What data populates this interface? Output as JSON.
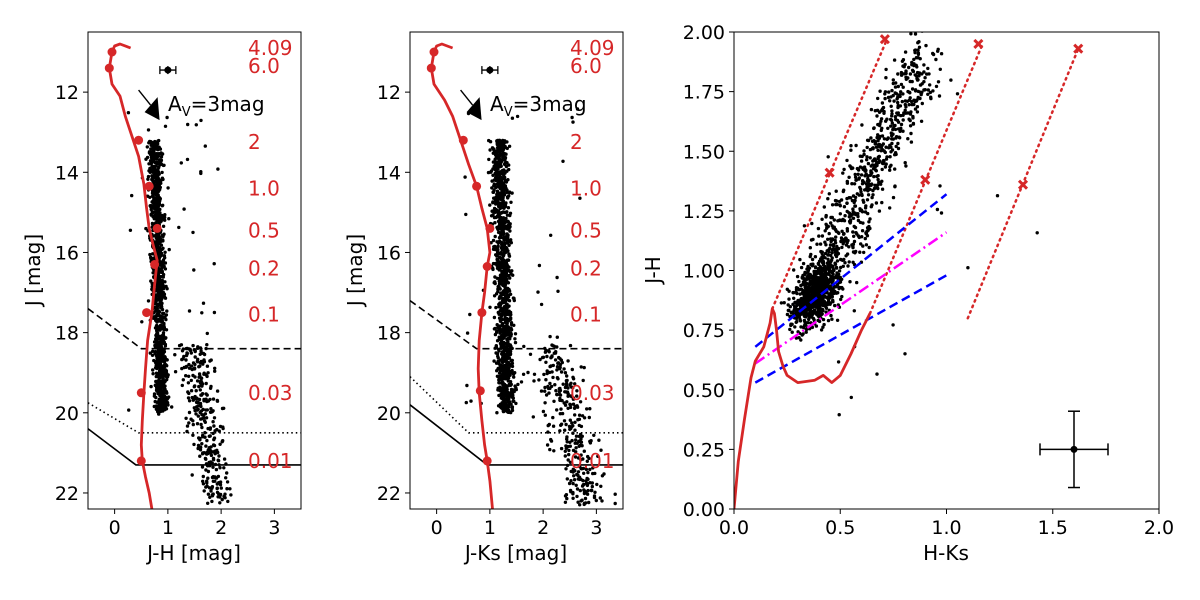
{
  "chart_data": [
    {
      "type": "scatter",
      "xlabel": "J-H [mag]",
      "ylabel": "J [mag]",
      "xlim": [
        -0.5,
        3.5
      ],
      "ylim": [
        22.4,
        10.5
      ],
      "xticks": [
        "0",
        "1",
        "2",
        "3"
      ],
      "yticks": [
        "12",
        "14",
        "16",
        "18",
        "20",
        "22"
      ],
      "grid": false,
      "isochrone": {
        "x": [
          0.3,
          0.1,
          0.0,
          -0.05,
          -0.1,
          -0.05,
          0.1,
          0.2,
          0.3,
          0.45,
          0.55,
          0.6,
          0.65,
          0.72,
          0.8,
          0.75,
          0.7,
          0.62,
          0.58,
          0.55,
          0.52,
          0.5,
          0.52,
          0.58,
          0.65,
          0.7
        ],
        "y": [
          10.9,
          10.8,
          10.85,
          11.0,
          11.4,
          11.8,
          12.1,
          12.6,
          13.0,
          13.6,
          14.3,
          14.9,
          15.4,
          15.8,
          16.2,
          16.8,
          17.5,
          18.2,
          18.9,
          19.5,
          20.2,
          20.8,
          21.2,
          21.6,
          22.0,
          22.4
        ]
      },
      "mass_points": {
        "x": [
          -0.1,
          -0.05,
          0.45,
          0.65,
          0.8,
          0.75,
          0.6,
          0.5,
          0.5
        ],
        "y": [
          11.4,
          11.0,
          13.2,
          14.35,
          15.4,
          16.3,
          17.5,
          19.5,
          21.2
        ]
      },
      "mass_labels": [
        "4.09",
        "6.0",
        "2",
        "1.0",
        "0.5",
        "0.2",
        "0.1",
        "0.03",
        "0.01"
      ],
      "mass_label_mags": [
        10.9,
        11.35,
        13.25,
        14.4,
        15.45,
        16.4,
        17.55,
        19.5,
        21.2
      ],
      "av_label": "A",
      "av_sub": "V",
      "av_rest": "=3mag",
      "error_bar": {
        "x": 1.0,
        "y": 11.45,
        "xerr": 0.15,
        "yerr": 0.1
      },
      "limit_lines": [
        {
          "style": "dashed",
          "x": [
            -0.5,
            0.5,
            3.5
          ],
          "y": [
            17.4,
            18.4,
            18.4
          ]
        },
        {
          "style": "dotted",
          "x": [
            -0.5,
            0.45,
            3.5
          ],
          "y": [
            19.75,
            20.5,
            20.5
          ]
        },
        {
          "style": "solid",
          "x": [
            -0.5,
            0.4,
            3.5
          ],
          "y": [
            20.4,
            21.3,
            21.3
          ]
        }
      ]
    },
    {
      "type": "scatter",
      "xlabel": "J-Ks [mag]",
      "ylabel": "J [mag]",
      "xlim": [
        -0.5,
        3.5
      ],
      "ylim": [
        22.4,
        10.5
      ],
      "xticks": [
        "0",
        "1",
        "2",
        "3"
      ],
      "yticks": [
        "12",
        "14",
        "16",
        "18",
        "20",
        "22"
      ],
      "grid": false,
      "isochrone": {
        "x": [
          0.3,
          0.1,
          0.0,
          -0.05,
          -0.1,
          -0.05,
          0.15,
          0.3,
          0.45,
          0.6,
          0.75,
          0.85,
          0.95,
          1.0,
          0.95,
          0.9,
          0.85,
          0.8,
          0.78,
          0.8,
          0.85,
          0.9,
          0.95,
          1.0,
          1.05
        ],
        "y": [
          10.9,
          10.8,
          10.85,
          11.0,
          11.4,
          11.8,
          12.2,
          12.6,
          13.2,
          13.8,
          14.35,
          14.9,
          15.4,
          16.0,
          16.35,
          17.0,
          17.5,
          18.2,
          18.9,
          19.5,
          20.2,
          20.8,
          21.2,
          21.7,
          22.4
        ]
      },
      "mass_points": {
        "x": [
          -0.1,
          -0.05,
          0.5,
          0.75,
          1.0,
          0.95,
          0.85,
          0.82,
          0.95
        ],
        "y": [
          11.4,
          11.0,
          13.2,
          14.35,
          15.4,
          16.35,
          17.5,
          19.45,
          21.2
        ]
      },
      "mass_labels": [
        "4.09",
        "6.0",
        "2",
        "1.0",
        "0.5",
        "0.2",
        "0.1",
        "0.03",
        "0.01"
      ],
      "mass_label_mags": [
        10.9,
        11.35,
        13.25,
        14.4,
        15.45,
        16.4,
        17.55,
        19.5,
        21.2
      ],
      "av_label": "A",
      "av_sub": "V",
      "av_rest": "=3mag",
      "error_bar": {
        "x": 1.0,
        "y": 11.45,
        "xerr": 0.15,
        "yerr": 0.1
      },
      "limit_lines": [
        {
          "style": "dashed",
          "x": [
            -0.5,
            0.75,
            3.5
          ],
          "y": [
            17.2,
            18.4,
            18.4
          ]
        },
        {
          "style": "dotted",
          "x": [
            -0.5,
            0.6,
            3.5
          ],
          "y": [
            19.1,
            20.5,
            20.5
          ]
        },
        {
          "style": "solid",
          "x": [
            -0.5,
            0.95,
            3.5
          ],
          "y": [
            19.8,
            21.3,
            21.3
          ]
        }
      ]
    },
    {
      "type": "scatter",
      "xlabel": "H-Ks",
      "ylabel": "J-H",
      "xlim": [
        0.0,
        2.0
      ],
      "ylim": [
        0.0,
        2.0
      ],
      "xticks": [
        "0.0",
        "0.5",
        "1.0",
        "1.5",
        "2.0"
      ],
      "yticks": [
        "0.00",
        "0.25",
        "0.50",
        "0.75",
        "1.00",
        "1.25",
        "1.50",
        "1.75",
        "2.00"
      ],
      "grid": false,
      "track": {
        "x": [
          0.0,
          0.02,
          0.05,
          0.08,
          0.1,
          0.14,
          0.17,
          0.18,
          0.19,
          0.2,
          0.21,
          0.23,
          0.25,
          0.3,
          0.38,
          0.42,
          0.46,
          0.5,
          0.55,
          0.6,
          0.64
        ],
        "y": [
          0.0,
          0.2,
          0.38,
          0.55,
          0.62,
          0.68,
          0.78,
          0.84,
          0.82,
          0.75,
          0.66,
          0.6,
          0.56,
          0.53,
          0.54,
          0.56,
          0.53,
          0.56,
          0.65,
          0.75,
          0.82
        ]
      },
      "reddening_lines": [
        {
          "x": [
            0.18,
            0.72
          ],
          "y": [
            0.84,
            1.97
          ]
        },
        {
          "x": [
            0.64,
            1.17
          ],
          "y": [
            0.82,
            1.95
          ]
        },
        {
          "x": [
            1.1,
            1.62
          ],
          "y": [
            0.8,
            1.93
          ]
        }
      ],
      "reddening_markers": {
        "x": [
          0.45,
          0.71,
          0.9,
          1.15,
          1.36,
          1.62
        ],
        "y": [
          1.41,
          1.97,
          1.38,
          1.95,
          1.36,
          1.93
        ]
      },
      "ctts_line": {
        "x": [
          0.1,
          1.0
        ],
        "y": [
          0.61,
          1.16
        ]
      },
      "ctts_bounds": [
        {
          "x": [
            0.1,
            1.0
          ],
          "y": [
            0.68,
            1.32
          ]
        },
        {
          "x": [
            0.1,
            1.0
          ],
          "y": [
            0.53,
            0.98
          ]
        }
      ],
      "error_bar": {
        "x": 1.6,
        "y": 0.25,
        "xerr": 0.16,
        "yerr": 0.16
      }
    }
  ],
  "colors": {
    "isochrone": "#d62728",
    "points": "#000000",
    "ctts_locus": "#ff00ff",
    "ctts_bounds": "#0000ff"
  }
}
